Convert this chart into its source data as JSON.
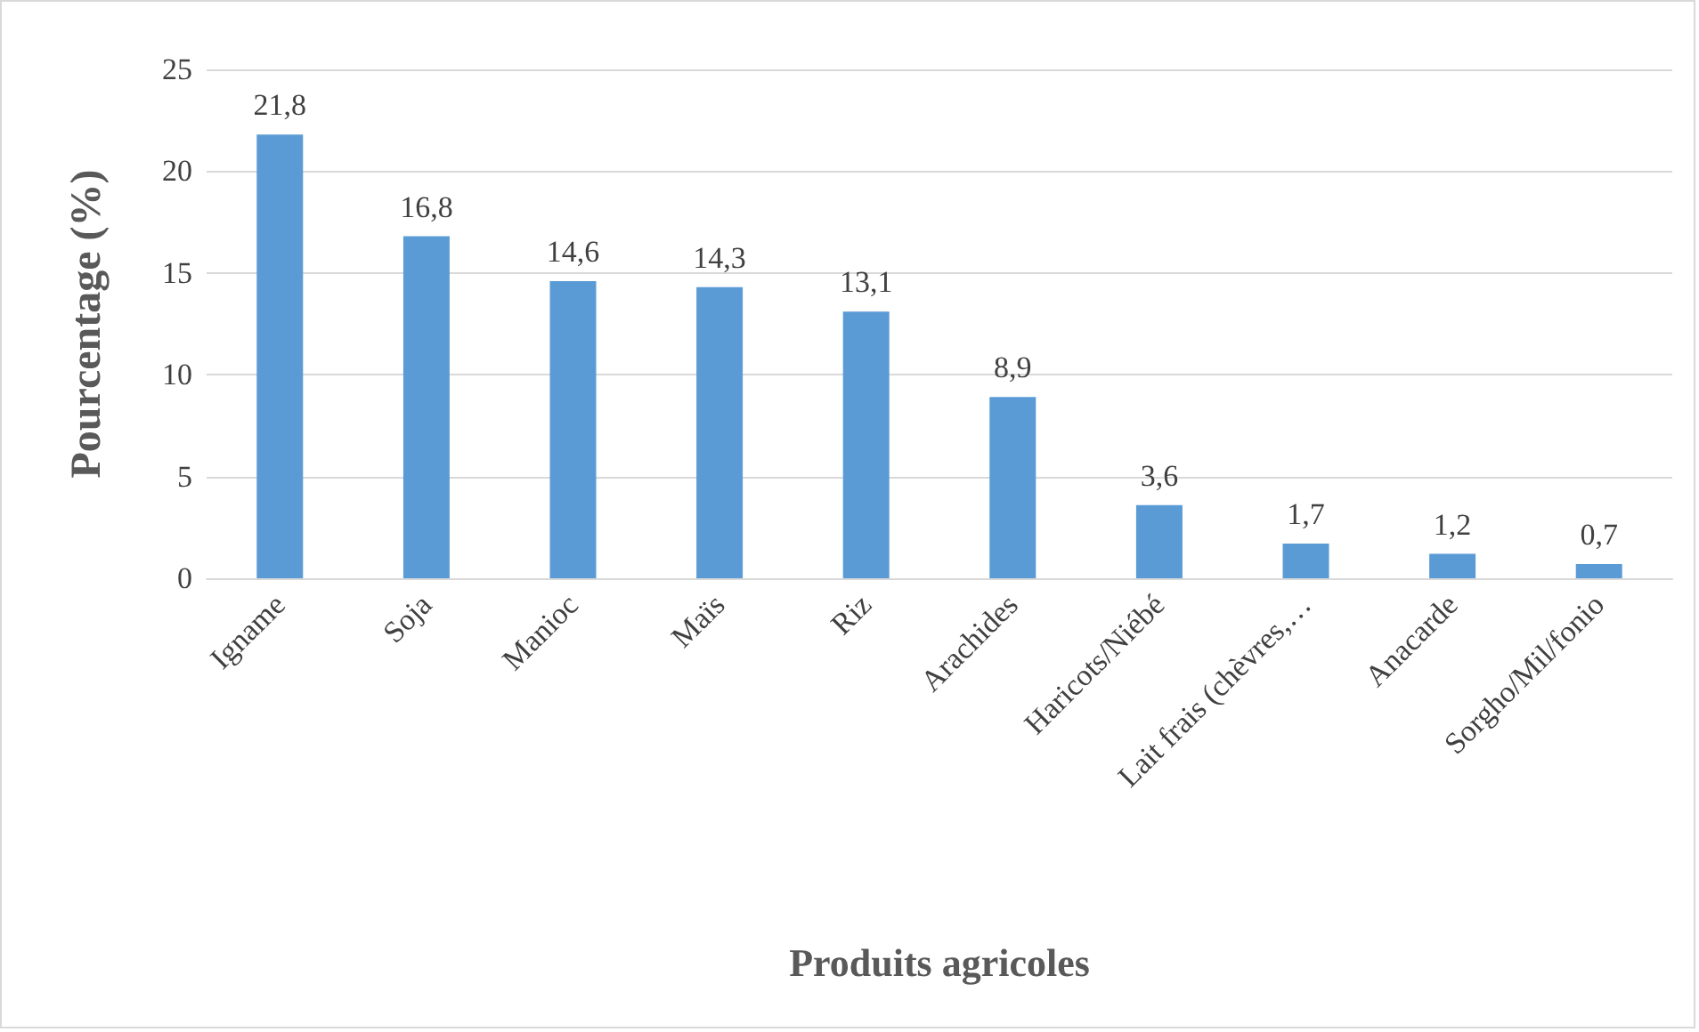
{
  "chart_data": {
    "type": "bar",
    "xlabel": "Produits agricoles",
    "ylabel": "Pourcentage (%)",
    "categories": [
      "Igname",
      "Soja",
      "Manioc",
      "Maïs",
      "Riz",
      "Arachides",
      "Haricots/Niébé",
      "Lait frais (chèvres,…",
      "Anacarde",
      "Sorgho/Mil/fonio"
    ],
    "values": [
      21.8,
      16.8,
      14.6,
      14.3,
      13.1,
      8.9,
      3.6,
      1.7,
      1.2,
      0.7
    ],
    "value_labels": [
      "21,8",
      "16,8",
      "14,6",
      "14,3",
      "13,1",
      "8,9",
      "3,6",
      "1,7",
      "1,2",
      "0,7"
    ],
    "color": "#5b9bd5",
    "ylim": [
      0,
      25
    ],
    "yticks": [
      0,
      5,
      10,
      15,
      20,
      25
    ],
    "grid": "y"
  }
}
